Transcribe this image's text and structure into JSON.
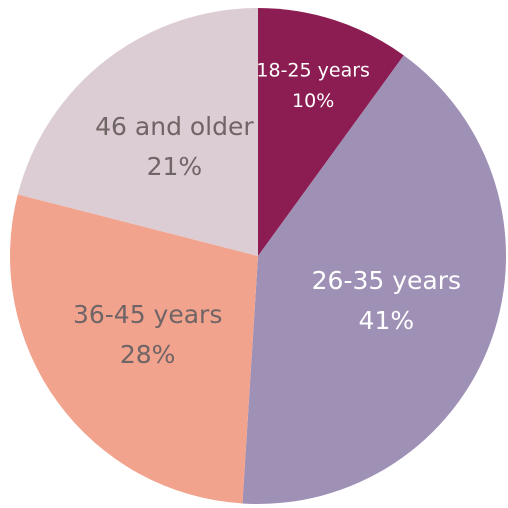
{
  "chart_data": {
    "type": "pie",
    "categories": [
      "18-25 years",
      "26-35 years",
      "36-45 years",
      "46 and older"
    ],
    "values": [
      10,
      41,
      28,
      21
    ],
    "value_labels": [
      "10%",
      "41%",
      "28%",
      "21%"
    ],
    "colors": [
      "#8c1d52",
      "#9f90b6",
      "#f2a38d",
      "#dccdd4"
    ],
    "label_colors": [
      "#ffffff",
      "#ffffff",
      "#6f6466",
      "#6f6466"
    ]
  }
}
